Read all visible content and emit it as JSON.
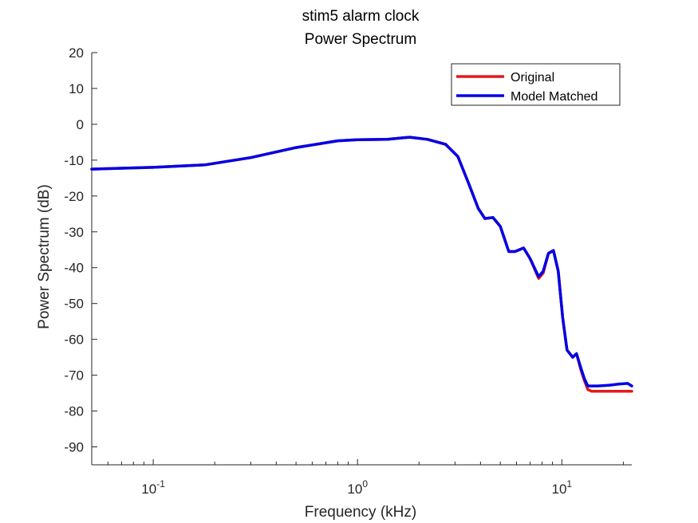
{
  "chart_data": {
    "type": "line",
    "title": "stim5 alarm clock",
    "subtitle": "Power Spectrum",
    "xlabel": "Frequency (kHz)",
    "ylabel": "Power Spectrum (dB)",
    "x_scale": "log",
    "xlim": [
      0.05,
      22
    ],
    "ylim": [
      -95,
      20
    ],
    "x_ticks": [
      {
        "value": 0.1,
        "base": "10",
        "exp": "-1"
      },
      {
        "value": 1,
        "base": "10",
        "exp": "0"
      },
      {
        "value": 10,
        "base": "10",
        "exp": "1"
      }
    ],
    "y_ticks": [
      20,
      10,
      0,
      -10,
      -20,
      -30,
      -40,
      -50,
      -60,
      -70,
      -80,
      -90
    ],
    "grid": false,
    "legend_position": "top-right",
    "series": [
      {
        "name": "Original",
        "color": "#e41a1c",
        "x": [
          0.05,
          0.1,
          0.18,
          0.3,
          0.5,
          0.8,
          1.0,
          1.4,
          1.8,
          2.2,
          2.7,
          3.1,
          3.5,
          3.9,
          4.2,
          4.6,
          5.0,
          5.5,
          5.9,
          6.5,
          7.0,
          7.7,
          8.1,
          8.6,
          9.1,
          9.6,
          10.1,
          10.6,
          11.3,
          11.8,
          12.4,
          12.9,
          13.4,
          14.0,
          15.0,
          17.0,
          19.0,
          21.0,
          22.0
        ],
        "y": [
          -12.5,
          -12.0,
          -11.3,
          -9.3,
          -6.5,
          -4.6,
          -4.3,
          -4.2,
          -3.6,
          -4.2,
          -5.6,
          -9.0,
          -16.5,
          -23.5,
          -26.3,
          -26.0,
          -28.5,
          -35.5,
          -35.5,
          -34.5,
          -37.5,
          -43.0,
          -41.5,
          -36.0,
          -35.2,
          -41.0,
          -54.0,
          -63.0,
          -65.0,
          -64.0,
          -68.5,
          -71.5,
          -74.0,
          -74.5,
          -74.5,
          -74.5,
          -74.5,
          -74.5,
          -74.5
        ]
      },
      {
        "name": "Model Matched",
        "color": "#0000e6",
        "x": [
          0.05,
          0.1,
          0.18,
          0.3,
          0.5,
          0.8,
          1.0,
          1.4,
          1.8,
          2.2,
          2.7,
          3.1,
          3.5,
          3.9,
          4.2,
          4.6,
          5.0,
          5.5,
          5.9,
          6.5,
          7.0,
          7.7,
          8.1,
          8.6,
          9.1,
          9.6,
          10.1,
          10.6,
          11.3,
          11.8,
          12.4,
          12.9,
          13.4,
          14.0,
          15.0,
          17.0,
          19.0,
          21.0,
          22.0
        ],
        "y": [
          -12.5,
          -12.0,
          -11.3,
          -9.3,
          -6.5,
          -4.6,
          -4.3,
          -4.2,
          -3.6,
          -4.2,
          -5.6,
          -9.0,
          -16.5,
          -23.5,
          -26.3,
          -26.0,
          -28.5,
          -35.5,
          -35.5,
          -34.5,
          -37.5,
          -42.5,
          -41.0,
          -36.0,
          -35.2,
          -41.0,
          -54.0,
          -63.0,
          -65.0,
          -64.0,
          -68.0,
          -71.0,
          -73.0,
          -73.0,
          -73.0,
          -72.8,
          -72.5,
          -72.3,
          -73.0
        ]
      }
    ]
  }
}
